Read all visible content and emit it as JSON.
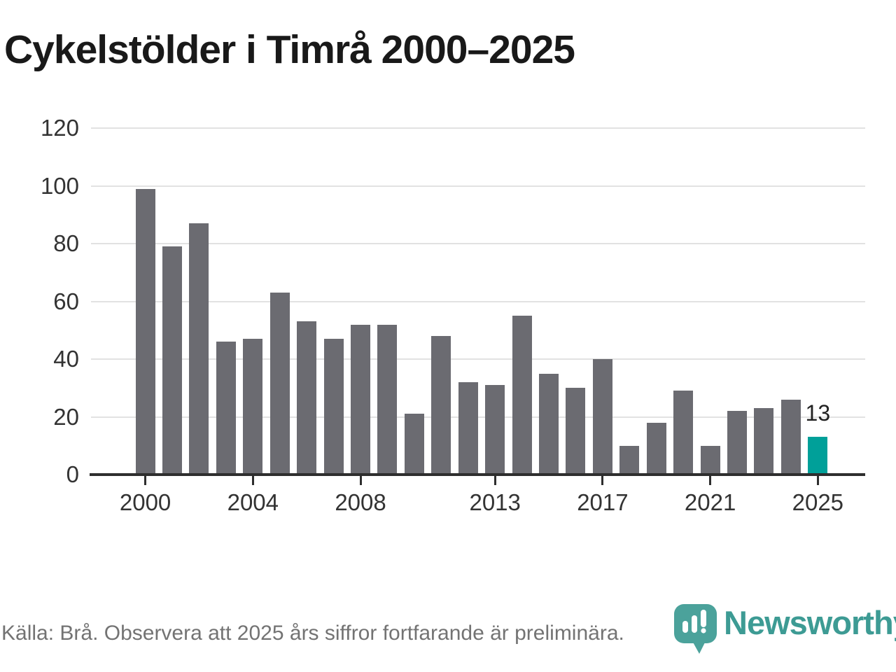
{
  "title": "Cykelstölder i Timrå 2000–2025",
  "chart_data": {
    "type": "bar",
    "title": "Cykelstölder i Timrå 2000–2025",
    "xlabel": "",
    "ylabel": "",
    "categories": [
      "2000",
      "2001",
      "2002",
      "2003",
      "2004",
      "2005",
      "2006",
      "2007",
      "2008",
      "2009",
      "2010",
      "2011",
      "2012",
      "2013",
      "2014",
      "2015",
      "2016",
      "2017",
      "2018",
      "2019",
      "2020",
      "2021",
      "2022",
      "2023",
      "2024",
      "2025"
    ],
    "values": [
      99,
      79,
      87,
      46,
      47,
      63,
      53,
      47,
      52,
      52,
      21,
      48,
      32,
      31,
      55,
      35,
      30,
      40,
      10,
      18,
      29,
      10,
      22,
      23,
      26,
      13
    ],
    "ylim": [
      0,
      120
    ],
    "y_ticks": [
      0,
      20,
      40,
      60,
      80,
      100,
      120
    ],
    "x_tick_labels": [
      "2000",
      "2004",
      "2008",
      "2013",
      "2017",
      "2021",
      "2025"
    ],
    "grid": true,
    "legend_position": "none",
    "bar_color": "#6b6b71",
    "highlight_category": "2025",
    "highlight_color": "#00a099",
    "highlight_value_label": "13"
  },
  "footer": {
    "source_note": "Källa: Brå. Observera att 2025 års siffror fortfarande är preliminära."
  },
  "branding": {
    "logo_text": "Newsworthy",
    "logo_color": "#3d9b94",
    "logo_icon": "newsworthy-pin-barchart-icon"
  }
}
